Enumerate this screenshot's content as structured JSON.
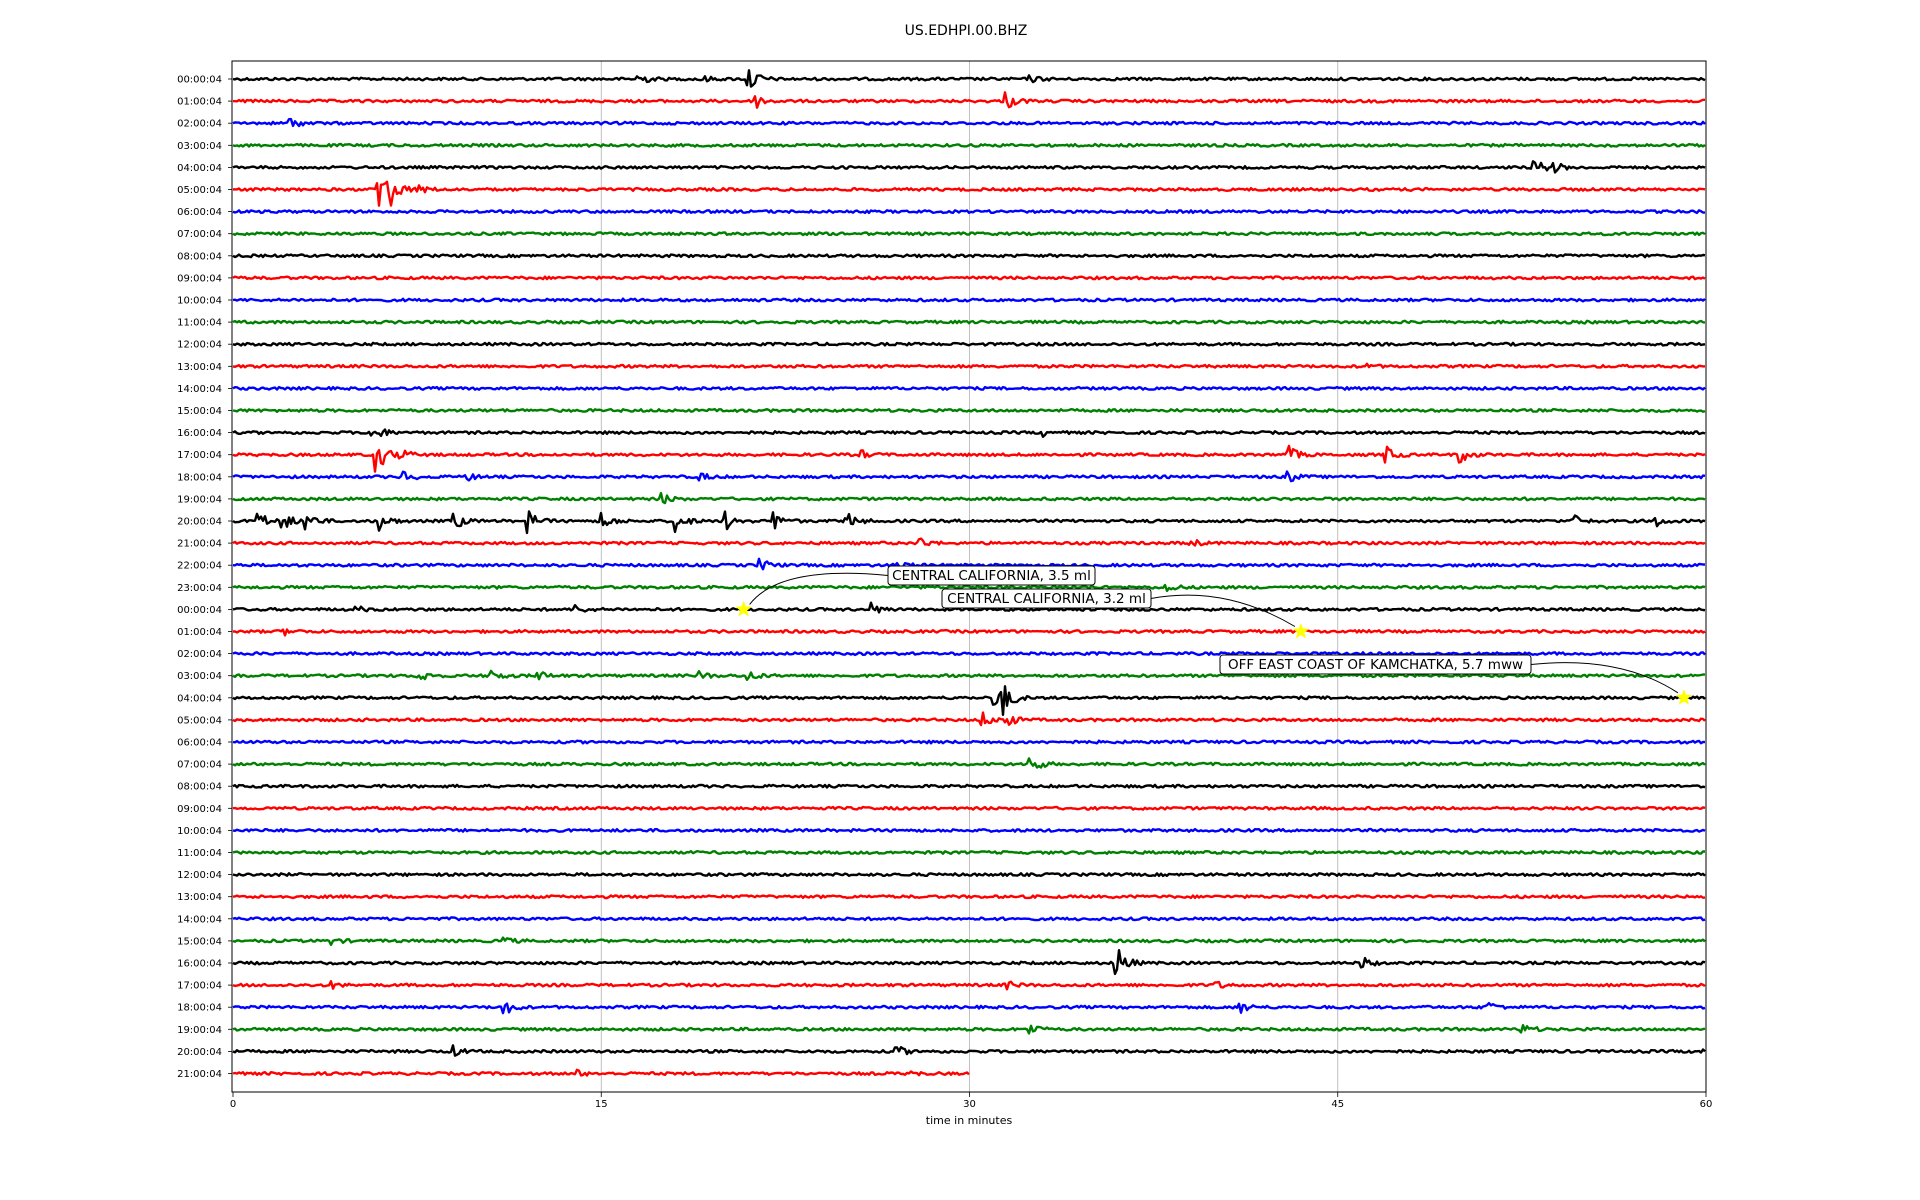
{
  "chart_data": {
    "type": "line",
    "title": "US.EDHPI.00.BHZ",
    "xlabel": "time in minutes",
    "xlim": [
      0,
      60
    ],
    "x_ticks": [
      "0",
      "15",
      "30",
      "45",
      "60"
    ],
    "x_tick_values": [
      0,
      15,
      30,
      45,
      60
    ],
    "grid": "vertical",
    "trace_colors": [
      "#000000",
      "#ff0000",
      "#0000ff",
      "#008000"
    ],
    "row_labels": [
      "00:00:04",
      "01:00:04",
      "02:00:04",
      "03:00:04",
      "04:00:04",
      "05:00:04",
      "06:00:04",
      "07:00:04",
      "08:00:04",
      "09:00:04",
      "10:00:04",
      "11:00:04",
      "12:00:04",
      "13:00:04",
      "14:00:04",
      "15:00:04",
      "16:00:04",
      "17:00:04",
      "18:00:04",
      "19:00:04",
      "20:00:04",
      "21:00:04",
      "22:00:04",
      "23:00:04",
      "00:00:04",
      "01:00:04",
      "02:00:04",
      "03:00:04",
      "04:00:04",
      "05:00:04",
      "06:00:04",
      "07:00:04",
      "08:00:04",
      "09:00:04",
      "10:00:04",
      "11:00:04",
      "12:00:04",
      "13:00:04",
      "14:00:04",
      "15:00:04",
      "16:00:04",
      "17:00:04",
      "18:00:04",
      "19:00:04",
      "20:00:04",
      "21:00:04"
    ],
    "last_row_end_minutes": 30,
    "events": [
      {
        "label": "CENTRAL CALIFORNIA, 3.5 ml",
        "row": 24,
        "minute": 20.8
      },
      {
        "label": "CENTRAL CALIFORNIA, 3.2 ml",
        "row": 25,
        "minute": 43.5
      },
      {
        "label": "OFF EAST COAST OF KAMCHATKA, 5.7 mww",
        "row": 28,
        "minute": 59.1
      }
    ],
    "event_marker_color": "#ffff00",
    "bursts": [
      {
        "row": 0,
        "minute": 16.5,
        "amp": 7
      },
      {
        "row": 0,
        "minute": 21.0,
        "amp": 14
      },
      {
        "row": 0,
        "minute": 19.0,
        "amp": 4
      },
      {
        "row": 0,
        "minute": 32.5,
        "amp": 3
      },
      {
        "row": 1,
        "minute": 21.3,
        "amp": 7
      },
      {
        "row": 1,
        "minute": 31.5,
        "amp": 9
      },
      {
        "row": 2,
        "minute": 2.3,
        "amp": 6
      },
      {
        "row": 4,
        "minute": 53.0,
        "amp": 9
      },
      {
        "row": 4,
        "minute": 53.8,
        "amp": 5
      },
      {
        "row": 5,
        "minute": 5.9,
        "amp": 26
      },
      {
        "row": 5,
        "minute": 6.3,
        "amp": 20
      },
      {
        "row": 5,
        "minute": 7.5,
        "amp": 6
      },
      {
        "row": 13,
        "minute": 46.0,
        "amp": 3
      },
      {
        "row": 16,
        "minute": 5.7,
        "amp": 10
      },
      {
        "row": 16,
        "minute": 33.0,
        "amp": 3
      },
      {
        "row": 17,
        "minute": 5.8,
        "amp": 22
      },
      {
        "row": 17,
        "minute": 6.8,
        "amp": 6
      },
      {
        "row": 17,
        "minute": 25.5,
        "amp": 5
      },
      {
        "row": 17,
        "minute": 43.0,
        "amp": 8
      },
      {
        "row": 17,
        "minute": 47.0,
        "amp": 8
      },
      {
        "row": 17,
        "minute": 50.0,
        "amp": 8
      },
      {
        "row": 18,
        "minute": 7.0,
        "amp": 5
      },
      {
        "row": 18,
        "minute": 9.5,
        "amp": 4
      },
      {
        "row": 18,
        "minute": 19.0,
        "amp": 4
      },
      {
        "row": 18,
        "minute": 43.0,
        "amp": 5
      },
      {
        "row": 19,
        "minute": 17.5,
        "amp": 5
      },
      {
        "row": 20,
        "minute": 1.0,
        "amp": 10
      },
      {
        "row": 20,
        "minute": 2.0,
        "amp": 10
      },
      {
        "row": 20,
        "minute": 3.0,
        "amp": 10
      },
      {
        "row": 20,
        "minute": 6.0,
        "amp": 9
      },
      {
        "row": 20,
        "minute": 9.0,
        "amp": 9
      },
      {
        "row": 20,
        "minute": 12.0,
        "amp": 11
      },
      {
        "row": 20,
        "minute": 15.0,
        "amp": 10
      },
      {
        "row": 20,
        "minute": 18.0,
        "amp": 12
      },
      {
        "row": 20,
        "minute": 20.0,
        "amp": 11
      },
      {
        "row": 20,
        "minute": 22.0,
        "amp": 10
      },
      {
        "row": 20,
        "minute": 25.0,
        "amp": 9
      },
      {
        "row": 20,
        "minute": 54.5,
        "amp": 8
      },
      {
        "row": 20,
        "minute": 58.0,
        "amp": 5
      },
      {
        "row": 21,
        "minute": 28.0,
        "amp": 5
      },
      {
        "row": 21,
        "minute": 39.0,
        "amp": 4
      },
      {
        "row": 22,
        "minute": 21.5,
        "amp": 6
      },
      {
        "row": 22,
        "minute": 27.0,
        "amp": 5
      },
      {
        "row": 23,
        "minute": 38.0,
        "amp": 5
      },
      {
        "row": 24,
        "minute": 5.0,
        "amp": 3
      },
      {
        "row": 24,
        "minute": 14.0,
        "amp": 4
      },
      {
        "row": 24,
        "minute": 26.0,
        "amp": 6
      },
      {
        "row": 25,
        "minute": 2.0,
        "amp": 4
      },
      {
        "row": 27,
        "minute": 7.5,
        "amp": 8
      },
      {
        "row": 27,
        "minute": 10.5,
        "amp": 7
      },
      {
        "row": 27,
        "minute": 12.3,
        "amp": 7
      },
      {
        "row": 27,
        "minute": 19.0,
        "amp": 4
      },
      {
        "row": 27,
        "minute": 21.0,
        "amp": 5
      },
      {
        "row": 28,
        "minute": 31.0,
        "amp": 12
      },
      {
        "row": 28,
        "minute": 31.4,
        "amp": 14
      },
      {
        "row": 29,
        "minute": 31.3,
        "amp": 14
      },
      {
        "row": 29,
        "minute": 30.5,
        "amp": 8
      },
      {
        "row": 31,
        "minute": 32.5,
        "amp": 10
      },
      {
        "row": 39,
        "minute": 4.0,
        "amp": 3
      },
      {
        "row": 39,
        "minute": 11.0,
        "amp": 4
      },
      {
        "row": 40,
        "minute": 36.0,
        "amp": 18
      },
      {
        "row": 40,
        "minute": 46.0,
        "amp": 6
      },
      {
        "row": 41,
        "minute": 4.0,
        "amp": 3
      },
      {
        "row": 41,
        "minute": 31.5,
        "amp": 4
      },
      {
        "row": 41,
        "minute": 40.0,
        "amp": 4
      },
      {
        "row": 42,
        "minute": 11.0,
        "amp": 9
      },
      {
        "row": 42,
        "minute": 41.0,
        "amp": 7
      },
      {
        "row": 42,
        "minute": 51.0,
        "amp": 8
      },
      {
        "row": 43,
        "minute": 32.5,
        "amp": 5
      },
      {
        "row": 43,
        "minute": 52.5,
        "amp": 5
      },
      {
        "row": 44,
        "minute": 9.0,
        "amp": 5
      },
      {
        "row": 44,
        "minute": 27.0,
        "amp": 6
      },
      {
        "row": 44,
        "minute": 59.8,
        "amp": 7
      },
      {
        "row": 45,
        "minute": 14.0,
        "amp": 3
      },
      {
        "row": 45,
        "minute": 27.5,
        "amp": 3
      }
    ]
  }
}
